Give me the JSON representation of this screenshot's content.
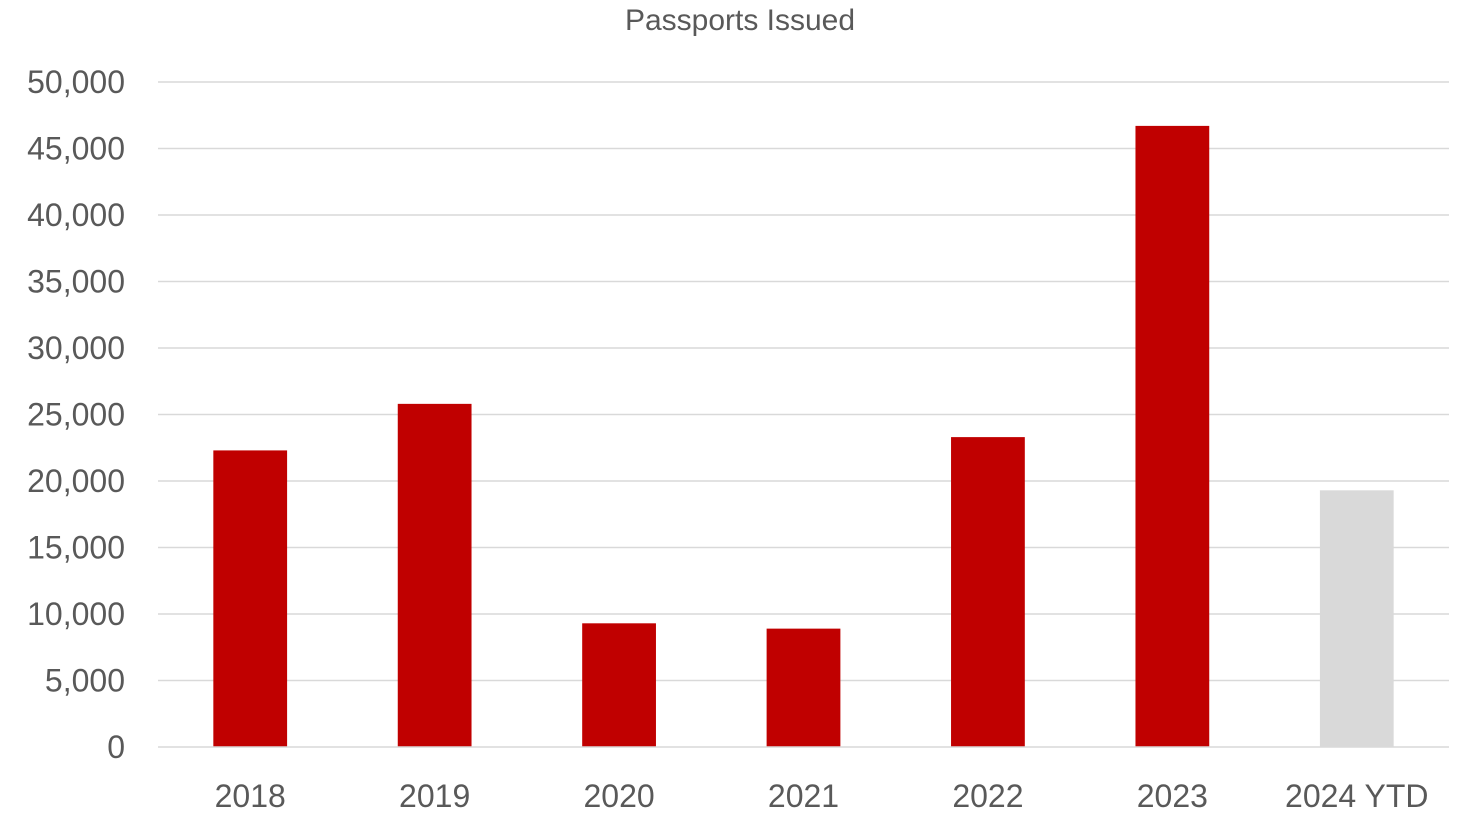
{
  "chart_data": {
    "type": "bar",
    "title": "Passports Issued",
    "xlabel": "",
    "ylabel": "",
    "categories": [
      "2018",
      "2019",
      "2020",
      "2021",
      "2022",
      "2023",
      "2024 YTD"
    ],
    "values": [
      22300,
      25800,
      9300,
      8900,
      23300,
      46700,
      19300
    ],
    "bar_colors": [
      "#c00000",
      "#c00000",
      "#c00000",
      "#c00000",
      "#c00000",
      "#c00000",
      "#d9d9d9"
    ],
    "ylim": [
      0,
      50000
    ],
    "ytick_step": 5000,
    "ytick_labels": [
      "0",
      "5,000",
      "10,000",
      "15,000",
      "20,000",
      "25,000",
      "30,000",
      "35,000",
      "40,000",
      "45,000",
      "50,000"
    ],
    "grid": true,
    "legend": "none"
  }
}
